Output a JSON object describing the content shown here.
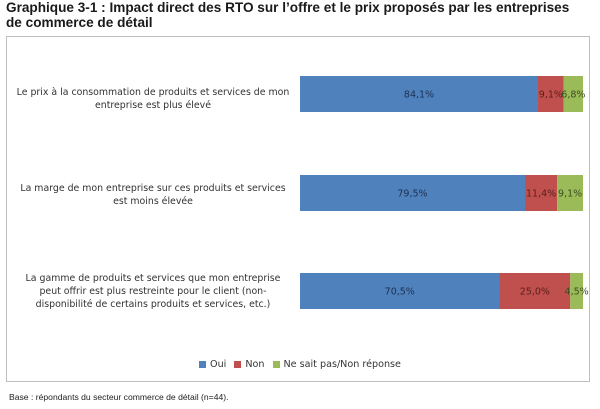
{
  "title_line1": "Graphique 3-1 : Impact direct des RTO sur l’offre et le prix proposés par les entreprises",
  "title_line2": "de commerce de détail",
  "footnote": "Base : répondants du secteur commerce de détail (n=44).",
  "chart_data": {
    "type": "bar",
    "orientation": "horizontal",
    "stacked": true,
    "stacked_100": true,
    "categories": [
      "Le prix à la consommation de produits et services de mon entreprise est plus élevé",
      "La marge de mon entreprise sur ces produits et services est moins élevée",
      "La gamme de produits et services que mon entreprise peut offrir est plus restreinte pour le client (non-disponibilité de certains produits et services, etc.)"
    ],
    "category_lines": [
      [
        "Le prix à la consommation de produits et services de mon",
        "entreprise est plus élevé"
      ],
      [
        "La marge de mon entreprise sur ces produits et services",
        "est moins élevée"
      ],
      [
        "La gamme de produits et services que mon entreprise",
        "peut offrir est plus restreinte pour le client (non-",
        "disponibilité de certains produits et services, etc.)"
      ]
    ],
    "series": [
      {
        "name": "Oui",
        "color": "#4f81bd",
        "values": [
          84.1,
          79.5,
          70.5
        ],
        "labels": [
          "84,1%",
          "79,5%",
          "70,5%"
        ]
      },
      {
        "name": "Non",
        "color": "#c0504d",
        "values": [
          9.1,
          11.4,
          25.0
        ],
        "labels": [
          "9,1%",
          "11,4%",
          "25,0%"
        ]
      },
      {
        "name": "Ne sait pas/Non réponse",
        "color": "#9bbb59",
        "values": [
          6.8,
          9.1,
          4.5
        ],
        "labels": [
          "6,8%",
          "9,1%",
          "4,5%"
        ]
      }
    ],
    "xlim": [
      0,
      100
    ],
    "grid": false,
    "legend_position": "bottom"
  }
}
